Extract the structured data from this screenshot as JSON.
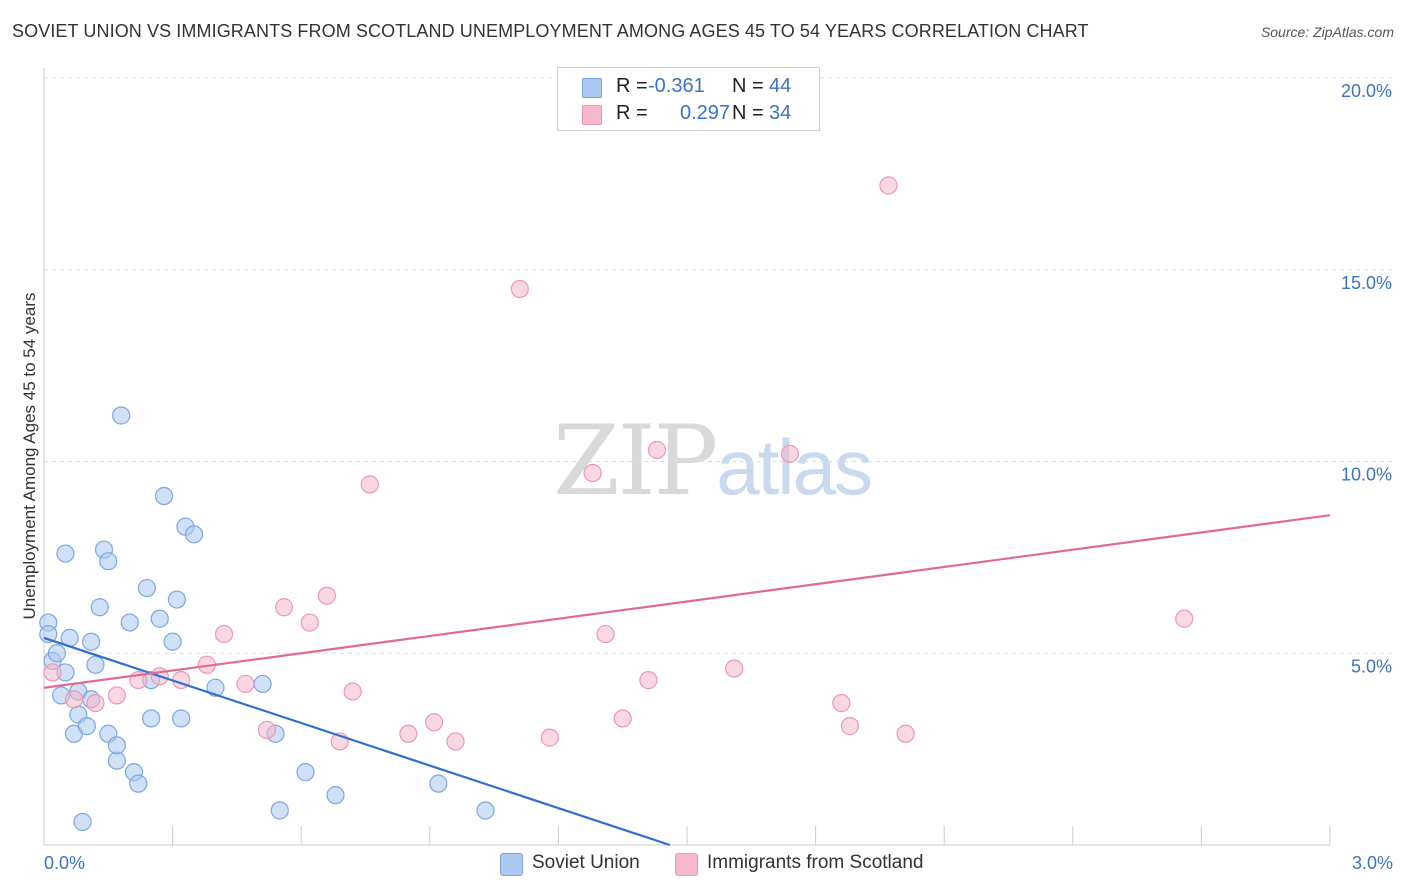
{
  "title": "SOVIET UNION VS IMMIGRANTS FROM SCOTLAND UNEMPLOYMENT AMONG AGES 45 TO 54 YEARS CORRELATION CHART",
  "source": "Source: ZipAtlas.com",
  "watermark": {
    "part1": "ZIP",
    "part2": "atlas"
  },
  "legend": {
    "rows": [
      {
        "r_label": "R =",
        "r_value": "-0.361",
        "n_label": "N =",
        "n_value": "44",
        "color": "#aac8f0"
      },
      {
        "r_label": "R =",
        "r_value": "0.297",
        "n_label": "N =",
        "n_value": "34",
        "color": "#f5b8cc"
      }
    ]
  },
  "bottom_legend": [
    {
      "label": "Soviet Union",
      "color": "#aac8f0"
    },
    {
      "label": "Immigrants from Scotland",
      "color": "#f5b8cc"
    }
  ],
  "chart_data": {
    "type": "scatter",
    "title": "SOVIET UNION VS IMMIGRANTS FROM SCOTLAND UNEMPLOYMENT AMONG AGES 45 TO 54 YEARS CORRELATION CHART",
    "xlabel": "",
    "ylabel": "Unemployment Among Ages 45 to 54 years",
    "xlim": [
      0,
      3.0
    ],
    "ylim": [
      0,
      20.0
    ],
    "x_tick_labels": [
      "0.0%",
      "3.0%"
    ],
    "y_tick_labels": [
      "5.0%",
      "10.0%",
      "15.0%",
      "20.0%"
    ],
    "y_ticks": [
      5,
      10,
      15,
      20
    ],
    "grid": "horizontal dashed",
    "series": [
      {
        "name": "Soviet Union",
        "color": "#aac8f0",
        "edge": "#7ba7e0",
        "trend_color": "#2f6fcf",
        "trend": {
          "x": [
            0.0,
            1.46
          ],
          "y": [
            5.4,
            0.0
          ]
        },
        "points": [
          [
            0.01,
            5.8
          ],
          [
            0.01,
            5.5
          ],
          [
            0.02,
            4.8
          ],
          [
            0.03,
            5.0
          ],
          [
            0.04,
            3.9
          ],
          [
            0.05,
            4.5
          ],
          [
            0.05,
            7.6
          ],
          [
            0.06,
            5.4
          ],
          [
            0.07,
            2.9
          ],
          [
            0.08,
            4.0
          ],
          [
            0.08,
            3.4
          ],
          [
            0.09,
            0.6
          ],
          [
            0.1,
            3.1
          ],
          [
            0.11,
            5.3
          ],
          [
            0.11,
            3.8
          ],
          [
            0.12,
            4.7
          ],
          [
            0.13,
            6.2
          ],
          [
            0.14,
            7.7
          ],
          [
            0.15,
            7.4
          ],
          [
            0.15,
            2.9
          ],
          [
            0.17,
            2.2
          ],
          [
            0.17,
            2.6
          ],
          [
            0.18,
            11.2
          ],
          [
            0.2,
            5.8
          ],
          [
            0.21,
            1.9
          ],
          [
            0.22,
            1.6
          ],
          [
            0.24,
            6.7
          ],
          [
            0.25,
            3.3
          ],
          [
            0.25,
            4.3
          ],
          [
            0.27,
            5.9
          ],
          [
            0.28,
            9.1
          ],
          [
            0.3,
            5.3
          ],
          [
            0.31,
            6.4
          ],
          [
            0.32,
            3.3
          ],
          [
            0.33,
            8.3
          ],
          [
            0.35,
            8.1
          ],
          [
            0.4,
            4.1
          ],
          [
            0.51,
            4.2
          ],
          [
            0.54,
            2.9
          ],
          [
            0.55,
            0.9
          ],
          [
            0.61,
            1.9
          ],
          [
            0.68,
            1.3
          ],
          [
            0.92,
            1.6
          ],
          [
            1.03,
            0.9
          ]
        ]
      },
      {
        "name": "Immigrants from Scotland",
        "color": "#f5b8cc",
        "edge": "#eb98b4",
        "trend_color": "#e06a95",
        "trend": {
          "x": [
            0.0,
            3.0
          ],
          "y": [
            4.1,
            8.6
          ]
        },
        "points": [
          [
            0.02,
            4.5
          ],
          [
            0.07,
            3.8
          ],
          [
            0.12,
            3.7
          ],
          [
            0.17,
            3.9
          ],
          [
            0.22,
            4.3
          ],
          [
            0.27,
            4.4
          ],
          [
            0.32,
            4.3
          ],
          [
            0.38,
            4.7
          ],
          [
            0.42,
            5.5
          ],
          [
            0.47,
            4.2
          ],
          [
            0.52,
            3.0
          ],
          [
            0.56,
            6.2
          ],
          [
            0.62,
            5.8
          ],
          [
            0.66,
            6.5
          ],
          [
            0.69,
            2.7
          ],
          [
            0.72,
            4.0
          ],
          [
            0.76,
            9.4
          ],
          [
            0.85,
            2.9
          ],
          [
            0.91,
            3.2
          ],
          [
            0.96,
            2.7
          ],
          [
            1.11,
            14.5
          ],
          [
            1.18,
            2.8
          ],
          [
            1.28,
            9.7
          ],
          [
            1.31,
            5.5
          ],
          [
            1.35,
            3.3
          ],
          [
            1.41,
            4.3
          ],
          [
            1.43,
            10.3
          ],
          [
            1.61,
            4.6
          ],
          [
            1.74,
            10.2
          ],
          [
            1.86,
            3.7
          ],
          [
            1.88,
            3.1
          ],
          [
            1.97,
            17.2
          ],
          [
            2.01,
            2.9
          ],
          [
            2.66,
            5.9
          ]
        ]
      }
    ]
  }
}
